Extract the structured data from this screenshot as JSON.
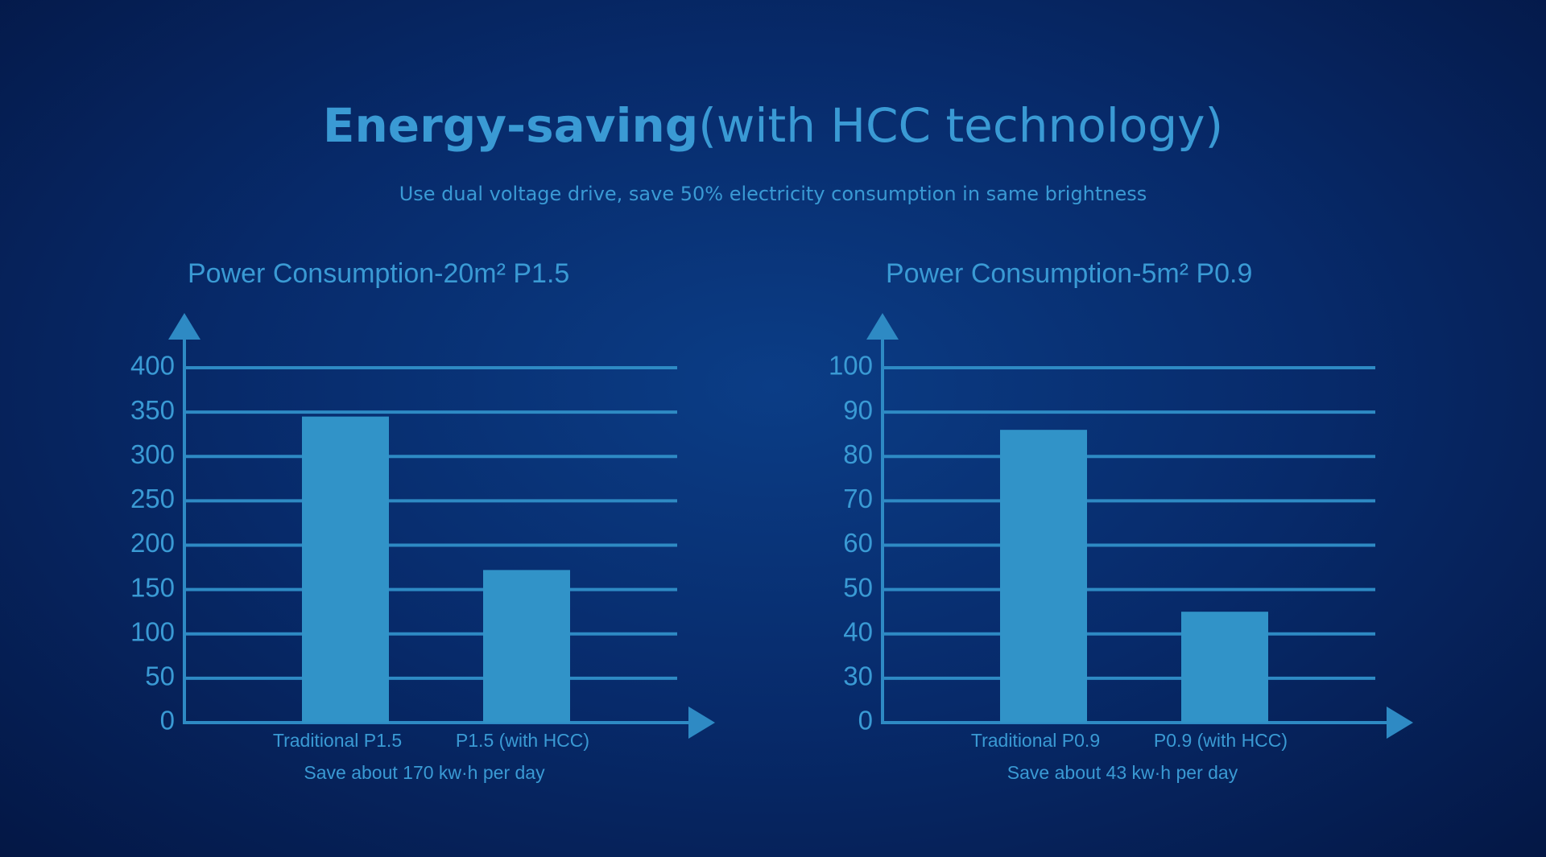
{
  "header": {
    "title_bold": "Energy-saving",
    "title_rest": "(with HCC technology)",
    "subtitle": "Use dual voltage drive, save 50% electricity consumption in same brightness"
  },
  "chart_data": [
    {
      "type": "bar",
      "title": "Power Consumption-20m² P1.5",
      "categories": [
        "Traditional P1.5",
        "P1.5 (with HCC)"
      ],
      "values": [
        345,
        172
      ],
      "color": "#3193c8",
      "ylim": [
        0,
        400
      ],
      "yticks": [
        0,
        50,
        100,
        150,
        200,
        250,
        300,
        350,
        400
      ],
      "grid": true,
      "annotation": "Save about 170 kw·h per day"
    },
    {
      "type": "bar",
      "title": "Power Consumption-5m² P0.9",
      "categories": [
        "Traditional P0.9",
        "P0.9 (with HCC)"
      ],
      "values": [
        86,
        45
      ],
      "color": "#3193c8",
      "ylim": [
        0,
        100
      ],
      "yticks": [
        0,
        30,
        40,
        50,
        60,
        70,
        80,
        90,
        100
      ],
      "grid": true,
      "annotation": "Save about 43 kw·h per day"
    }
  ]
}
